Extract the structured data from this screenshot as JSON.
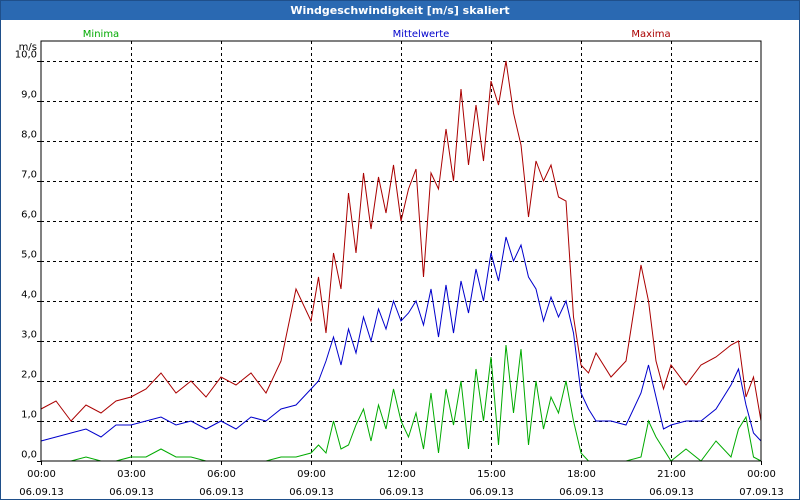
{
  "window": {
    "title": "Windgeschwindigkeit [m/s] skaliert"
  },
  "chart_data": {
    "type": "line",
    "title": "Windgeschwindigkeit [m/s] skaliert",
    "ylabel": "m/s",
    "ylim": [
      0,
      10.5
    ],
    "yticks": [
      {
        "value": 0,
        "label": "0,0"
      },
      {
        "value": 1,
        "label": "1,0"
      },
      {
        "value": 2,
        "label": "2,0"
      },
      {
        "value": 3,
        "label": "3,0"
      },
      {
        "value": 4,
        "label": "4,0"
      },
      {
        "value": 5,
        "label": "5,0"
      },
      {
        "value": 6,
        "label": "6,0"
      },
      {
        "value": 7,
        "label": "7,0"
      },
      {
        "value": 8,
        "label": "8,0"
      },
      {
        "value": 9,
        "label": "9,0"
      },
      {
        "value": 10,
        "label": "10,0"
      }
    ],
    "xlim": [
      0,
      24
    ],
    "xticks": [
      {
        "hour": 0,
        "time": "00:00",
        "date": "06.09.13"
      },
      {
        "hour": 3,
        "time": "03:00",
        "date": "06.09.13"
      },
      {
        "hour": 6,
        "time": "06:00",
        "date": "06.09.13"
      },
      {
        "hour": 9,
        "time": "09:00",
        "date": "06.09.13"
      },
      {
        "hour": 12,
        "time": "12:00",
        "date": "06.09.13"
      },
      {
        "hour": 15,
        "time": "15:00",
        "date": "06.09.13"
      },
      {
        "hour": 18,
        "time": "18:00",
        "date": "06.09.13"
      },
      {
        "hour": 21,
        "time": "21:00",
        "date": "06.09.13"
      },
      {
        "hour": 24,
        "time": "00:00",
        "date": "07.09.13"
      }
    ],
    "grid": true,
    "legend_position": "top",
    "series": [
      {
        "name": "Minima",
        "color": "#00aa00",
        "x": [
          0,
          0.5,
          1,
          1.5,
          2,
          2.5,
          3,
          3.5,
          4,
          4.5,
          5,
          5.5,
          6,
          6.5,
          7,
          7.5,
          8,
          8.5,
          9,
          9.25,
          9.5,
          9.75,
          10,
          10.25,
          10.5,
          10.75,
          11,
          11.25,
          11.5,
          11.75,
          12,
          12.25,
          12.5,
          12.75,
          13,
          13.25,
          13.5,
          13.75,
          14,
          14.25,
          14.5,
          14.75,
          15,
          15.25,
          15.5,
          15.75,
          16,
          16.25,
          16.5,
          16.75,
          17,
          17.25,
          17.5,
          17.75,
          18,
          18.25,
          18.5,
          19,
          19.5,
          20,
          20.25,
          20.5,
          20.75,
          21,
          21.5,
          22,
          22.5,
          23,
          23.25,
          23.5,
          23.75,
          24
        ],
        "y": [
          0,
          0,
          0,
          0.1,
          0,
          0,
          0.1,
          0.1,
          0.3,
          0.1,
          0.1,
          0,
          0,
          0,
          0,
          0,
          0.1,
          0.1,
          0.2,
          0.4,
          0.2,
          1.0,
          0.3,
          0.4,
          0.9,
          1.3,
          0.5,
          1.4,
          0.8,
          1.8,
          1.0,
          0.6,
          1.2,
          0.3,
          1.7,
          0.2,
          1.8,
          0.9,
          2.0,
          0.3,
          2.3,
          1.0,
          2.6,
          0.4,
          2.9,
          1.2,
          2.8,
          0.4,
          2.0,
          0.8,
          1.6,
          1.2,
          2.0,
          1.0,
          0.2,
          0,
          0,
          0,
          0,
          0.1,
          1.0,
          0.6,
          0.3,
          0,
          0.3,
          0,
          0.5,
          0.1,
          0.8,
          1.1,
          0.1,
          0
        ]
      },
      {
        "name": "Mittelwerte",
        "color": "#0000cc",
        "x": [
          0,
          0.5,
          1,
          1.5,
          2,
          2.5,
          3,
          3.5,
          4,
          4.5,
          5,
          5.5,
          6,
          6.5,
          7,
          7.5,
          8,
          8.5,
          9,
          9.25,
          9.5,
          9.75,
          10,
          10.25,
          10.5,
          10.75,
          11,
          11.25,
          11.5,
          11.75,
          12,
          12.25,
          12.5,
          12.75,
          13,
          13.25,
          13.5,
          13.75,
          14,
          14.25,
          14.5,
          14.75,
          15,
          15.25,
          15.5,
          15.75,
          16,
          16.25,
          16.5,
          16.75,
          17,
          17.25,
          17.5,
          17.75,
          18,
          18.25,
          18.5,
          19,
          19.5,
          20,
          20.25,
          20.5,
          20.75,
          21,
          21.5,
          22,
          22.5,
          23,
          23.25,
          23.5,
          23.75,
          24
        ],
        "y": [
          0.5,
          0.6,
          0.7,
          0.8,
          0.6,
          0.9,
          0.9,
          1.0,
          1.1,
          0.9,
          1.0,
          0.8,
          1.0,
          0.8,
          1.1,
          1.0,
          1.3,
          1.4,
          1.8,
          2.0,
          2.5,
          3.1,
          2.4,
          3.3,
          2.7,
          3.6,
          3.0,
          3.8,
          3.3,
          4.0,
          3.5,
          3.7,
          4.0,
          3.4,
          4.3,
          3.1,
          4.4,
          3.2,
          4.5,
          3.7,
          4.8,
          4.0,
          5.2,
          4.5,
          5.6,
          5.0,
          5.4,
          4.6,
          4.3,
          3.5,
          4.1,
          3.6,
          4.0,
          3.2,
          1.7,
          1.3,
          1.0,
          1.0,
          0.9,
          1.7,
          2.4,
          1.6,
          0.8,
          0.9,
          1.0,
          1.0,
          1.3,
          1.9,
          2.3,
          1.4,
          0.7,
          0.5
        ]
      },
      {
        "name": "Maxima",
        "color": "#aa0000",
        "x": [
          0,
          0.5,
          1,
          1.5,
          2,
          2.5,
          3,
          3.5,
          4,
          4.5,
          5,
          5.5,
          6,
          6.5,
          7,
          7.5,
          8,
          8.5,
          9,
          9.25,
          9.5,
          9.75,
          10,
          10.25,
          10.5,
          10.75,
          11,
          11.25,
          11.5,
          11.75,
          12,
          12.25,
          12.5,
          12.75,
          13,
          13.25,
          13.5,
          13.75,
          14,
          14.25,
          14.5,
          14.75,
          15,
          15.25,
          15.5,
          15.75,
          16,
          16.25,
          16.5,
          16.75,
          17,
          17.25,
          17.5,
          17.75,
          18,
          18.25,
          18.5,
          19,
          19.5,
          20,
          20.25,
          20.5,
          20.75,
          21,
          21.5,
          22,
          22.5,
          23,
          23.25,
          23.5,
          23.75,
          24
        ],
        "y": [
          1.3,
          1.5,
          1.0,
          1.4,
          1.2,
          1.5,
          1.6,
          1.8,
          2.2,
          1.7,
          2.0,
          1.6,
          2.1,
          1.9,
          2.2,
          1.7,
          2.5,
          4.3,
          3.5,
          4.6,
          3.2,
          5.2,
          4.3,
          6.7,
          5.2,
          7.2,
          5.8,
          7.1,
          6.2,
          7.4,
          6.0,
          6.8,
          7.3,
          4.6,
          7.2,
          6.8,
          8.3,
          7.0,
          9.3,
          7.4,
          8.9,
          7.5,
          9.5,
          8.9,
          10.0,
          8.7,
          7.9,
          6.1,
          7.5,
          7.0,
          7.4,
          6.6,
          6.5,
          3.6,
          2.4,
          2.2,
          2.7,
          2.1,
          2.5,
          4.9,
          4.0,
          2.5,
          1.8,
          2.4,
          1.9,
          2.4,
          2.6,
          2.9,
          3.0,
          1.6,
          2.1,
          1.0
        ]
      }
    ]
  }
}
